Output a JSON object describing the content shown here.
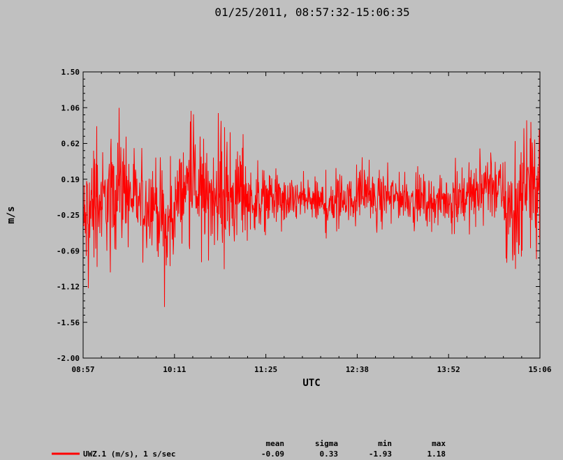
{
  "chart_data": {
    "type": "line",
    "title": "01/25/2011, 08:57:32-15:06:35",
    "xlabel": "UTC",
    "ylabel": "m/s",
    "x_ticks": [
      "08:57",
      "10:11",
      "11:25",
      "12:38",
      "13:52",
      "15:06"
    ],
    "y_ticks": [
      "1.50",
      "1.06",
      "0.62",
      "0.19",
      "-0.25",
      "-0.69",
      "-1.12",
      "-1.56",
      "-2.00"
    ],
    "ylim": [
      -2.0,
      1.5
    ],
    "xlim": [
      "08:57:32",
      "15:06:35"
    ],
    "grid": false,
    "series": [
      {
        "name": "UWZ.1 (m/s), 1 s/sec",
        "color": "#ff0000",
        "stats": {
          "mean": "-0.09",
          "sigma": "0.33",
          "min": "-1.93",
          "max": "1.18"
        },
        "envelope": {
          "x": [
            "08:57",
            "09:05",
            "09:15",
            "09:25",
            "09:35",
            "09:45",
            "09:55",
            "10:05",
            "10:15",
            "10:25",
            "10:35",
            "10:45",
            "10:55",
            "11:05",
            "11:15",
            "11:25",
            "11:35",
            "11:45",
            "11:55",
            "12:05",
            "12:15",
            "12:25",
            "12:35",
            "12:45",
            "12:55",
            "13:05",
            "13:15",
            "13:25",
            "13:35",
            "13:45",
            "13:55",
            "14:05",
            "14:15",
            "14:25",
            "14:35",
            "14:45",
            "14:55",
            "15:06"
          ],
          "upper": [
            0.5,
            1.0,
            0.8,
            1.15,
            0.7,
            0.6,
            0.7,
            0.5,
            0.7,
            1.05,
            0.7,
            1.05,
            0.75,
            0.9,
            0.4,
            0.5,
            0.35,
            0.3,
            0.35,
            0.3,
            0.35,
            0.4,
            0.3,
            0.5,
            0.35,
            0.4,
            0.3,
            0.35,
            0.35,
            0.3,
            0.4,
            0.6,
            0.5,
            0.95,
            0.6,
            0.75,
            1.05,
            0.9
          ],
          "lower": [
            -1.4,
            -1.2,
            -1.0,
            -0.9,
            -0.7,
            -0.9,
            -0.8,
            -1.5,
            -0.7,
            -0.7,
            -0.9,
            -0.9,
            -1.0,
            -0.8,
            -0.6,
            -0.55,
            -0.5,
            -0.5,
            -0.45,
            -0.5,
            -0.6,
            -0.45,
            -0.45,
            -0.4,
            -0.6,
            -0.4,
            -0.4,
            -0.45,
            -0.5,
            -0.5,
            -0.5,
            -0.6,
            -0.55,
            -0.6,
            -0.5,
            -1.35,
            -0.8,
            -0.9
          ]
        }
      }
    ]
  },
  "stats_headers": {
    "mean": "mean",
    "sigma": "sigma",
    "min": "min",
    "max": "max"
  }
}
